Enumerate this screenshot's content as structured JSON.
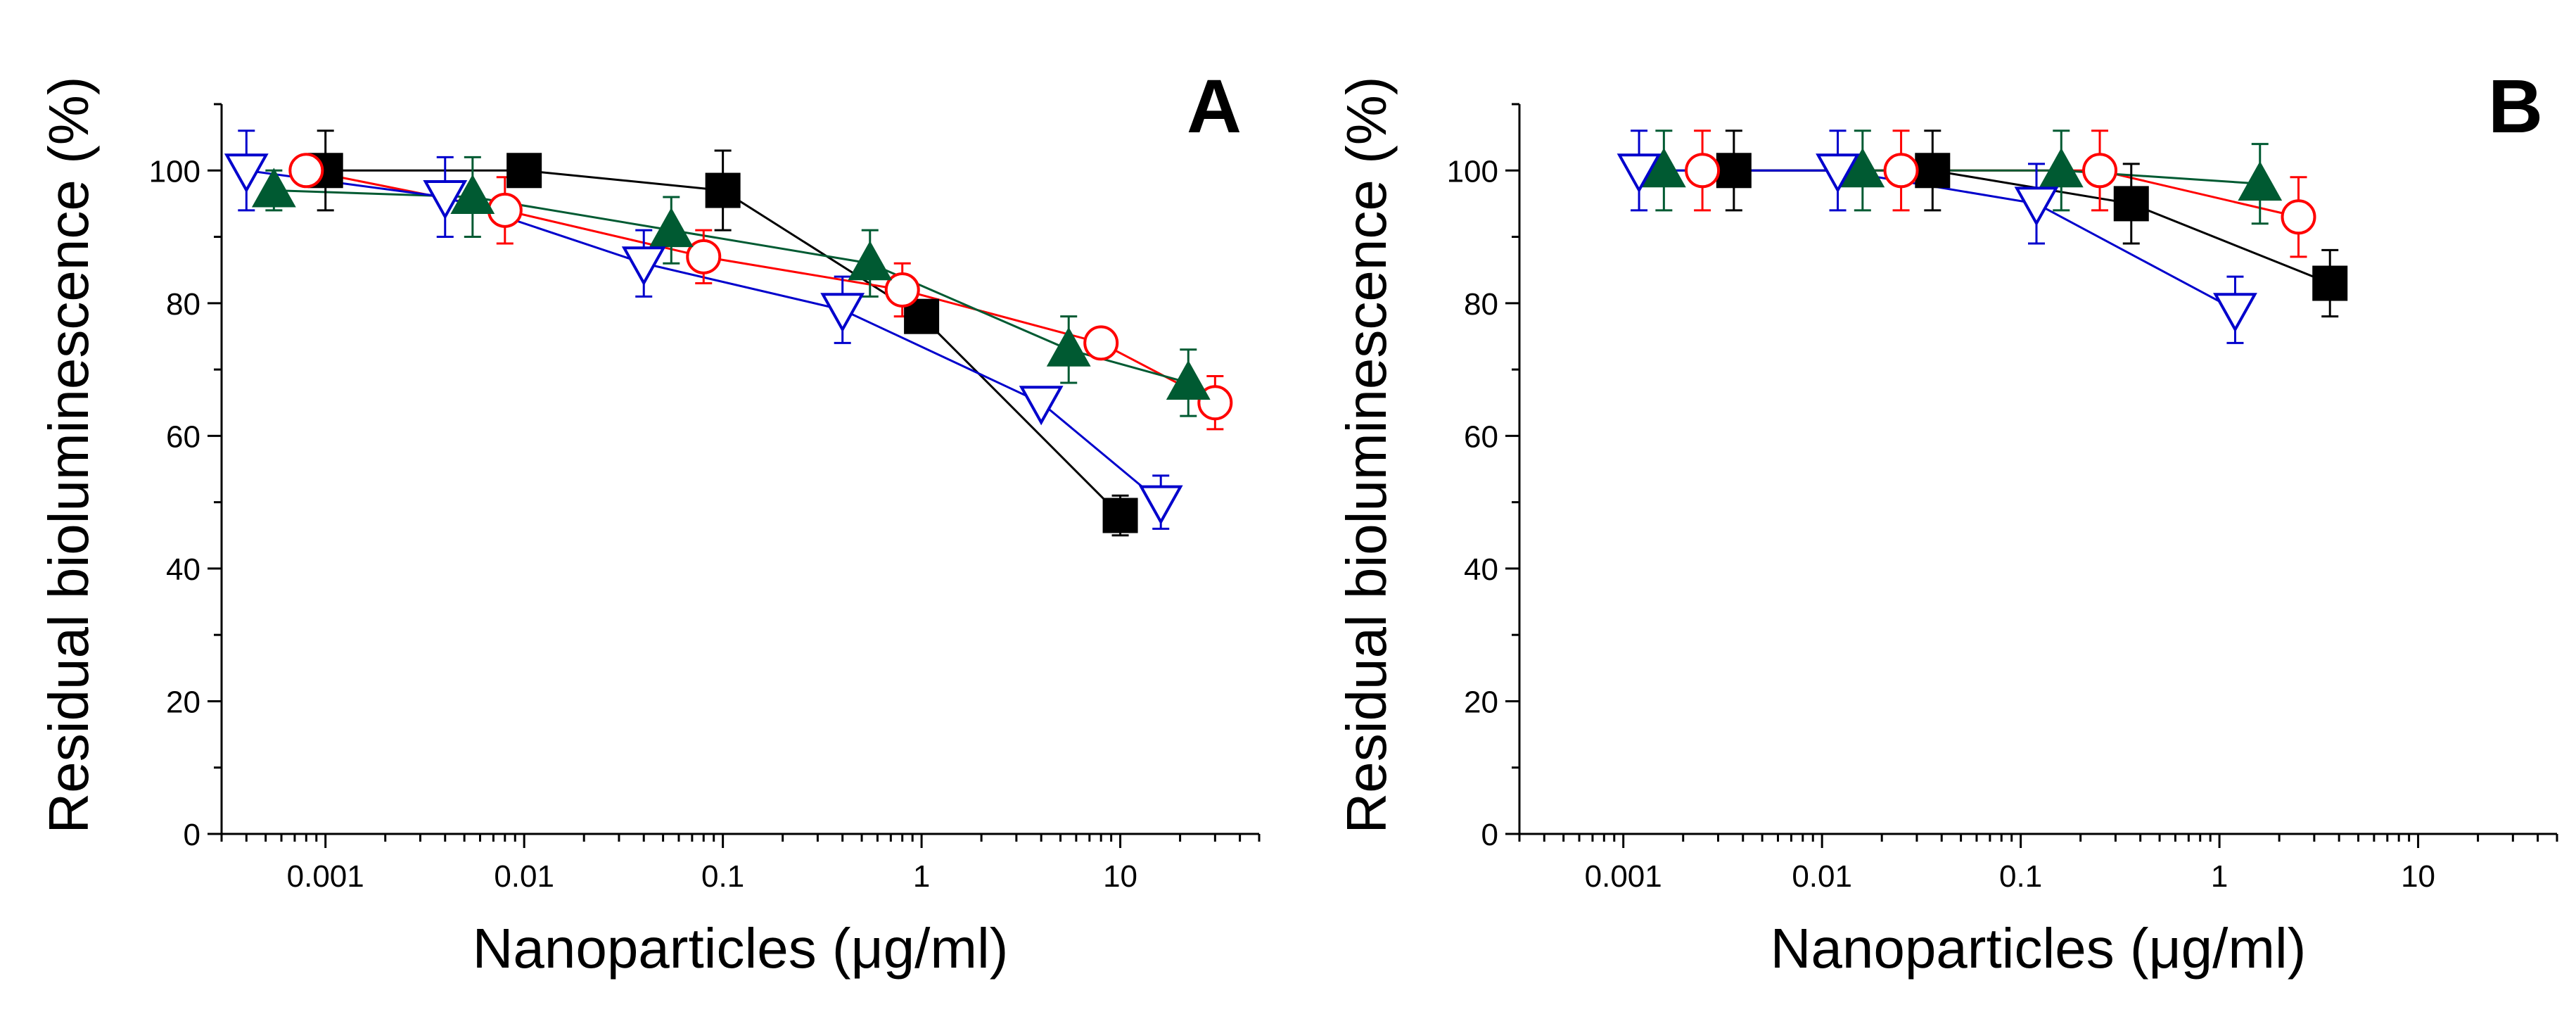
{
  "chart_data": [
    {
      "type": "line",
      "panel_label": "A",
      "xscale": "log",
      "xlim": [
        0.0003,
        50
      ],
      "ylim": [
        0,
        110
      ],
      "xlabel": "Nanoparticles (μg/ml)",
      "ylabel": "Residual bioluminescence (%)",
      "x_ticks": [
        0.001,
        0.01,
        0.1,
        1,
        10
      ],
      "x_tick_labels": [
        "0.001",
        "0.01",
        "0.1",
        "1",
        "10"
      ],
      "y_ticks": [
        0,
        20,
        40,
        60,
        80,
        100
      ],
      "y_tick_labels": [
        "0",
        "20",
        "40",
        "60",
        "80",
        "100"
      ],
      "series": [
        {
          "name": "series-square",
          "marker": "square",
          "filled": true,
          "color": "#000000",
          "x": [
            0.001,
            0.01,
            0.1,
            1,
            10
          ],
          "values": [
            100,
            100,
            97,
            78,
            48
          ],
          "errors": [
            6,
            0,
            6,
            0,
            3
          ]
        },
        {
          "name": "series-circle",
          "marker": "circle",
          "filled": false,
          "color": "#ff0000",
          "x": [
            0.0008,
            0.008,
            0.08,
            0.8,
            8,
            30
          ],
          "values": [
            100,
            94,
            87,
            82,
            74,
            65
          ],
          "errors": [
            0,
            5,
            4,
            4,
            0,
            4
          ]
        },
        {
          "name": "series-triangle-up",
          "marker": "triangle-up",
          "filled": true,
          "color": "#005a32",
          "x": [
            0.00055,
            0.0055,
            0.055,
            0.55,
            5.5,
            22
          ],
          "values": [
            97,
            96,
            91,
            86,
            73,
            68
          ],
          "errors": [
            3,
            6,
            5,
            5,
            5,
            5
          ]
        },
        {
          "name": "series-triangle-down",
          "marker": "triangle-down",
          "filled": false,
          "color": "#0000cc",
          "x": [
            0.0004,
            0.004,
            0.04,
            0.4,
            4,
            16
          ],
          "values": [
            100,
            96,
            86,
            79,
            65,
            50
          ],
          "errors": [
            6,
            6,
            5,
            5,
            0,
            4
          ]
        }
      ]
    },
    {
      "type": "line",
      "panel_label": "B",
      "xscale": "log",
      "xlim": [
        0.0003,
        50
      ],
      "ylim": [
        0,
        110
      ],
      "xlabel": "Nanoparticles (μg/ml)",
      "ylabel": "Residual bioluminescence (%)",
      "x_ticks": [
        0.001,
        0.01,
        0.1,
        1,
        10
      ],
      "x_tick_labels": [
        "0.001",
        "0.01",
        "0.1",
        "1",
        "10"
      ],
      "y_ticks": [
        0,
        20,
        40,
        60,
        80,
        100
      ],
      "y_tick_labels": [
        "0",
        "20",
        "40",
        "60",
        "80",
        "100"
      ],
      "series": [
        {
          "name": "series-square",
          "marker": "square",
          "filled": true,
          "color": "#000000",
          "x": [
            0.0036,
            0.036,
            0.36,
            3.6
          ],
          "values": [
            100,
            100,
            95,
            83
          ],
          "errors": [
            6,
            6,
            6,
            5
          ]
        },
        {
          "name": "series-circle",
          "marker": "circle",
          "filled": false,
          "color": "#ff0000",
          "x": [
            0.0025,
            0.025,
            0.25,
            2.5
          ],
          "values": [
            100,
            100,
            100,
            93
          ],
          "errors": [
            6,
            6,
            6,
            6
          ]
        },
        {
          "name": "series-triangle-up",
          "marker": "triangle-up",
          "filled": true,
          "color": "#005a32",
          "x": [
            0.0016,
            0.016,
            0.16,
            1.6
          ],
          "values": [
            100,
            100,
            100,
            98
          ],
          "errors": [
            6,
            6,
            6,
            6
          ]
        },
        {
          "name": "series-triangle-down",
          "marker": "triangle-down",
          "filled": false,
          "color": "#0000cc",
          "x": [
            0.0012,
            0.012,
            0.12,
            1.2
          ],
          "values": [
            100,
            100,
            95,
            79
          ],
          "errors": [
            6,
            6,
            6,
            5
          ]
        }
      ]
    }
  ]
}
